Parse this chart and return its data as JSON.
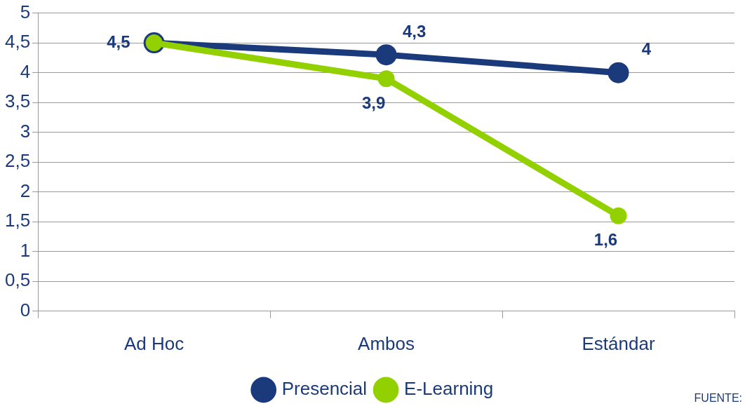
{
  "chart_data": {
    "type": "line",
    "categories": [
      "Ad Hoc",
      "Ambos",
      "Estándar"
    ],
    "series": [
      {
        "name": "Presencial",
        "color": "#1b3a7c",
        "values": [
          4.5,
          4.3,
          4
        ],
        "value_labels": [
          "4,5",
          "4,3",
          "4"
        ]
      },
      {
        "name": "E-Learning",
        "color": "#92d000",
        "values": [
          4.5,
          3.9,
          1.6
        ],
        "value_labels": [
          null,
          "3,9",
          "1,6"
        ]
      }
    ],
    "ylim": [
      0,
      5
    ],
    "yticks": [
      0,
      {
        "value": 0.5,
        "label": "0,5"
      },
      1,
      {
        "value": 1.5,
        "label": "1,5"
      },
      2,
      {
        "value": 2.5,
        "label": "2,5"
      },
      3,
      {
        "value": 3.5,
        "label": "3,5"
      },
      4,
      {
        "value": 4.5,
        "label": "4,5"
      },
      5
    ],
    "grid": "y",
    "legend": "bottom",
    "marker": "circle",
    "line_style": "solid",
    "annotations": [
      "FUENTE:"
    ]
  }
}
